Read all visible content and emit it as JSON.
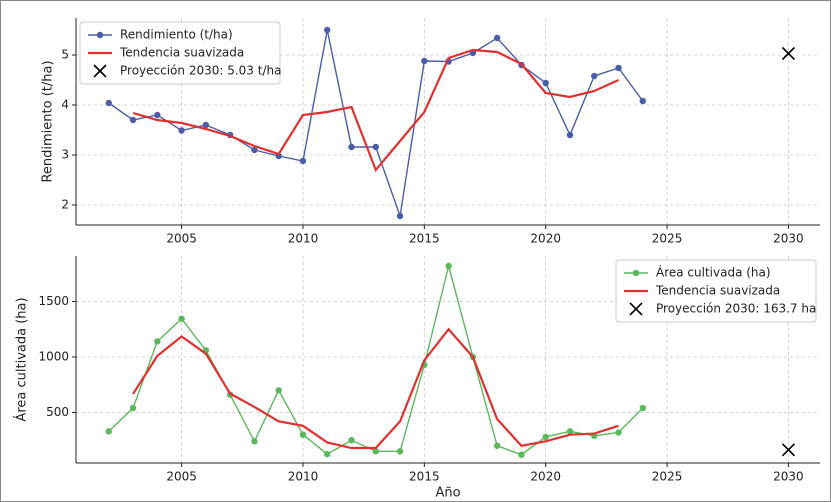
{
  "chart_data": [
    {
      "type": "line",
      "ylabel": "Rendimiento (t/ha)",
      "x": [
        2002,
        2003,
        2004,
        2005,
        2006,
        2007,
        2008,
        2009,
        2010,
        2011,
        2012,
        2013,
        2014,
        2015,
        2016,
        2017,
        2018,
        2019,
        2020,
        2021,
        2022,
        2023,
        2024
      ],
      "series": [
        {
          "name": "Rendimiento (t/ha)",
          "color": "#4c5da8",
          "marker": "o",
          "values": [
            4.04,
            3.7,
            3.8,
            3.49,
            3.6,
            3.4,
            3.1,
            2.98,
            2.88,
            5.5,
            3.16,
            3.16,
            1.78,
            4.88,
            4.87,
            5.04,
            5.34,
            4.8,
            4.44,
            3.4,
            4.58,
            4.74,
            4.08
          ]
        },
        {
          "name": "Tendencia suavizada",
          "color": "#e03030",
          "marker": "none",
          "values": [
            null,
            3.84,
            3.7,
            3.64,
            3.52,
            3.38,
            3.18,
            3.02,
            3.8,
            3.86,
            3.96,
            2.7,
            3.28,
            3.86,
            4.94,
            5.1,
            5.06,
            4.82,
            4.24,
            4.16,
            4.28,
            4.5,
            null
          ]
        },
        {
          "name": "Proyección 2030: 5.03 t/ha",
          "color": "#000000",
          "marker": "x",
          "x": [
            2030
          ],
          "values": [
            5.03
          ]
        }
      ],
      "xlim": [
        2000.65,
        2031.3
      ],
      "ylim": [
        1.6,
        5.74
      ],
      "xticks": [
        2005,
        2010,
        2015,
        2020,
        2025,
        2030
      ],
      "yticks": [
        2,
        3,
        4,
        5
      ],
      "grid": true,
      "legend": "upper left"
    },
    {
      "type": "line",
      "ylabel": "Área cultivada (ha)",
      "xlabel": "Año",
      "x": [
        2002,
        2003,
        2004,
        2005,
        2006,
        2007,
        2008,
        2009,
        2010,
        2011,
        2012,
        2013,
        2014,
        2015,
        2016,
        2017,
        2018,
        2019,
        2020,
        2021,
        2022,
        2023,
        2024
      ],
      "series": [
        {
          "name": "Área cultivada (ha)",
          "color": "#5cb85c",
          "marker": "o",
          "values": [
            330,
            540,
            1140,
            1345,
            1060,
            660,
            240,
            700,
            300,
            125,
            250,
            150,
            150,
            930,
            1820,
            1000,
            200,
            120,
            280,
            330,
            290,
            320,
            540
          ]
        },
        {
          "name": "Tendencia suavizada",
          "color": "#e03030",
          "marker": "none",
          "values": [
            null,
            667,
            1010,
            1185,
            1030,
            670,
            550,
            420,
            380,
            230,
            180,
            180,
            420,
            970,
            1250,
            1000,
            440,
            200,
            240,
            300,
            310,
            380,
            null
          ]
        },
        {
          "name": "Proyección 2030: 163.7 ha",
          "color": "#000000",
          "marker": "x",
          "x": [
            2030
          ],
          "values": [
            163.7
          ]
        }
      ],
      "xlim": [
        2000.65,
        2031.3
      ],
      "ylim": [
        45,
        1910
      ],
      "xticks": [
        2005,
        2010,
        2015,
        2020,
        2025,
        2030
      ],
      "yticks": [
        500,
        1000,
        1500
      ],
      "grid": true,
      "legend": "upper right"
    }
  ]
}
